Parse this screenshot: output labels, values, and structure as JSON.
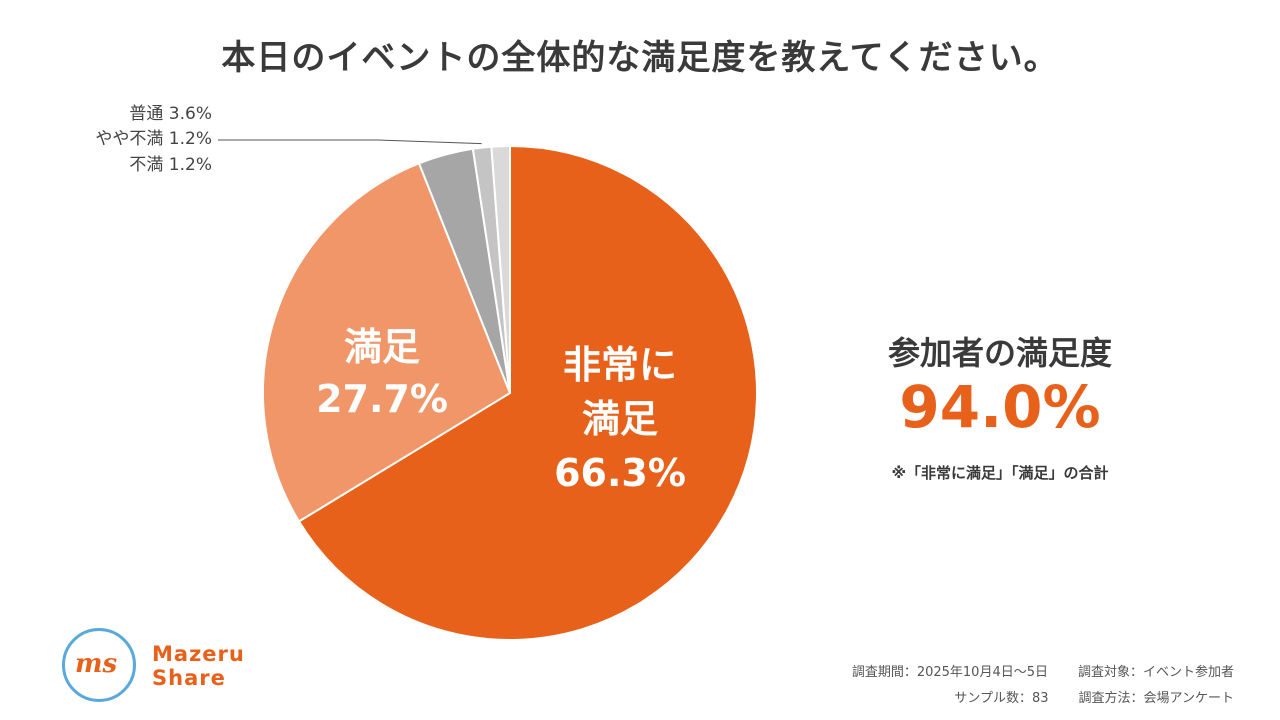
{
  "title": "本日のイベントの全体的な満足度を教えてください。",
  "chart_data": {
    "type": "pie",
    "slices": [
      {
        "label": "非常に満足",
        "value": 66.3,
        "value_text": "66.3%",
        "color": "#e8611a"
      },
      {
        "label": "満足",
        "value": 27.7,
        "value_text": "27.7%",
        "color": "#f09668"
      },
      {
        "label": "普通",
        "value": 3.6,
        "value_text": "3.6%",
        "color": "#a6a6a6"
      },
      {
        "label": "やや不満",
        "value": 1.2,
        "value_text": "1.2%",
        "color": "#c4c4c4"
      },
      {
        "label": "不満",
        "value": 1.2,
        "value_text": "1.2%",
        "color": "#d9d9d9"
      }
    ]
  },
  "summary": {
    "label": "参加者の満足度",
    "value": "94.0%",
    "note": "※「非常に満足」「満足」の合計"
  },
  "footer": {
    "period": "調査期間：2025年10月4日〜5日",
    "target": "調査対象：イベント参加者",
    "samples": "サンプル数：83",
    "method": "調査方法：会場アンケート"
  },
  "logo": {
    "mark": "ms",
    "line1": "Mazeru",
    "line2": "Share"
  },
  "colors": {
    "accent": "#e8611a",
    "logo_circle": "#5aa9dd"
  }
}
